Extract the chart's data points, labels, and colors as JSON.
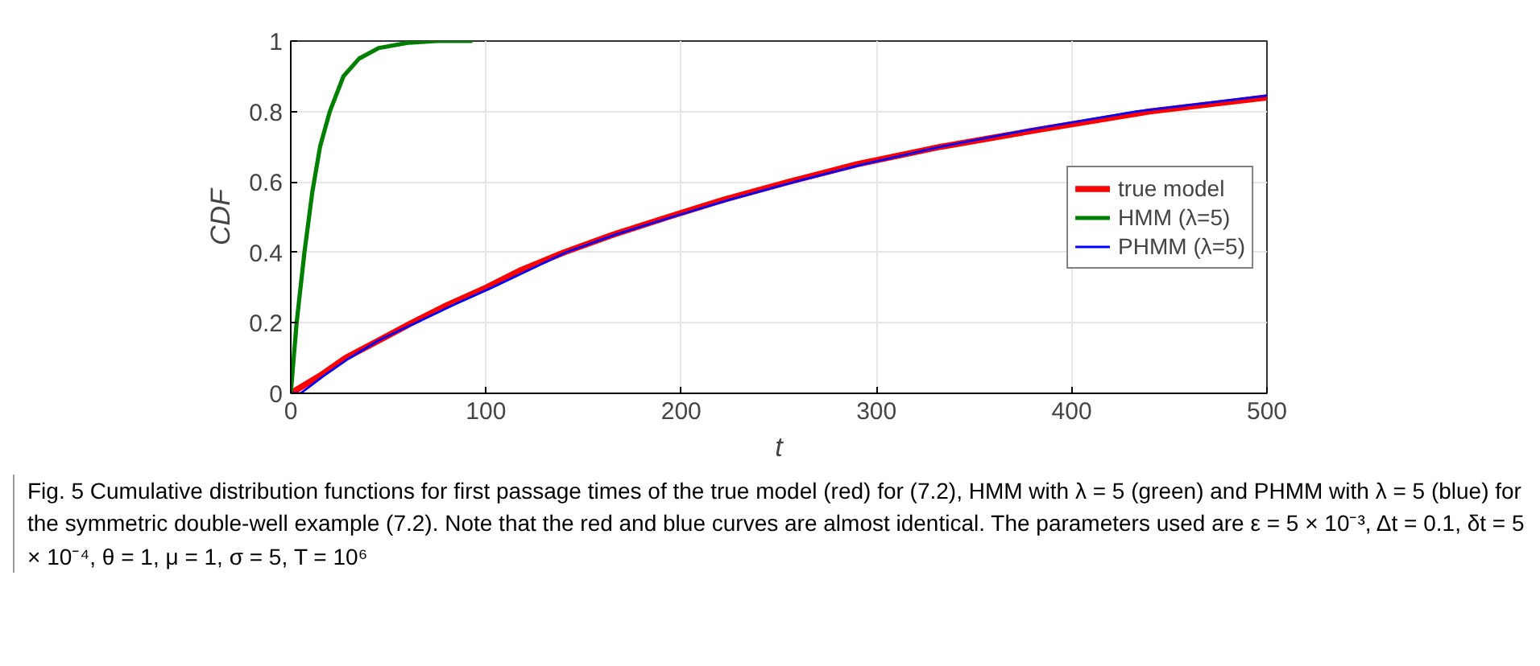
{
  "chart_data": {
    "type": "line",
    "xlabel": "t",
    "ylabel": "CDF",
    "xlim": [
      0,
      500
    ],
    "xticks": [
      0,
      100,
      200,
      300,
      400,
      500
    ],
    "ylim": [
      0,
      1
    ],
    "yticks": [
      0,
      0.2,
      0.4,
      0.6,
      0.8,
      1
    ],
    "grid": true,
    "legend": "right",
    "marker": "none",
    "line_style": "solid",
    "series": [
      {
        "name": "true model",
        "color": "#ff0000",
        "x": [
          0,
          15,
          28,
          45,
          62,
          80,
          100,
          118,
          140,
          165,
          193,
          222,
          255,
          290,
          333,
          385,
          440,
          500
        ],
        "values": [
          0,
          0.05,
          0.1,
          0.15,
          0.2,
          0.25,
          0.3,
          0.35,
          0.4,
          0.45,
          0.5,
          0.55,
          0.6,
          0.65,
          0.7,
          0.75,
          0.8,
          0.84
        ]
      },
      {
        "name": "HMM (λ=5)",
        "color": "#008000",
        "x": [
          0,
          3,
          7,
          11,
          15,
          20,
          27,
          35,
          45,
          60,
          75,
          93
        ],
        "values": [
          0,
          0.2,
          0.4,
          0.57,
          0.7,
          0.8,
          0.9,
          0.95,
          0.98,
          0.995,
          1,
          1
        ]
      },
      {
        "name": "PHMM (λ=5)",
        "color": "#0000ff",
        "x": [
          0,
          5,
          17,
          30,
          45,
          64,
          83,
          103,
          122,
          141,
          166,
          195,
          225,
          258,
          293,
          333,
          380,
          433,
          500
        ],
        "values": [
          0,
          0,
          0.05,
          0.1,
          0.15,
          0.2,
          0.25,
          0.3,
          0.35,
          0.4,
          0.45,
          0.5,
          0.55,
          0.6,
          0.65,
          0.7,
          0.75,
          0.8,
          0.845
        ]
      }
    ],
    "annotations": [
      "Fig. 5 Cumulative distribution functions for first passage times of the true model (red) for (7.2), HMM with λ = 5 (green) and PHMM with λ = 5 (blue) for the symmetric double-well example (7.2). Note that the red and blue curves are almost identical. The parameters used are ε = 5 × 10⁻³, Δt = 0.1, δt = 5 × 10⁻⁴, θ = 1, μ = 1, σ = 5, T = 10⁶"
    ]
  }
}
